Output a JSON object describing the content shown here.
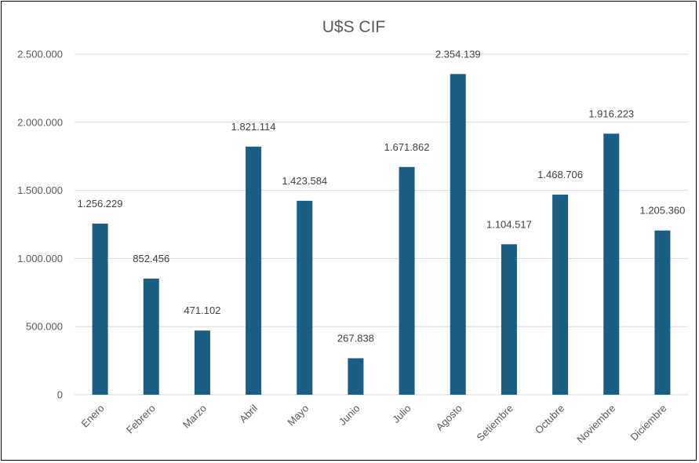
{
  "chart_data": {
    "type": "bar",
    "title": "U$S CIF",
    "xlabel": "",
    "ylabel": "",
    "categories": [
      "Enero",
      "Febrero",
      "Marzo",
      "Abril",
      "Mayo",
      "Junio",
      "Julio",
      "Agosto",
      "Setiembre",
      "Octubre",
      "Noviembre",
      "Diciembre"
    ],
    "values": [
      1256229,
      852456,
      471102,
      1821114,
      1423584,
      267838,
      1671862,
      2354139,
      1104517,
      1468706,
      1916223,
      1205360
    ],
    "data_labels": [
      "1.256.229",
      "852.456",
      "471.102",
      "1.821.114",
      "1.423.584",
      "267.838",
      "1.671.862",
      "2.354.139",
      "1.104.517",
      "1.468.706",
      "1.916.223",
      "1.205.360"
    ],
    "ylim": [
      0,
      2500000
    ],
    "y_ticks": [
      0,
      500000,
      1000000,
      1500000,
      2000000,
      2500000
    ],
    "y_tick_labels": [
      "0",
      "500.000",
      "1.000.000",
      "1.500.000",
      "2.000.000",
      "2.500.000"
    ],
    "grid": true,
    "legend": "none",
    "bar_color": "#1a5e84",
    "grid_color": "#d9d9d9"
  }
}
